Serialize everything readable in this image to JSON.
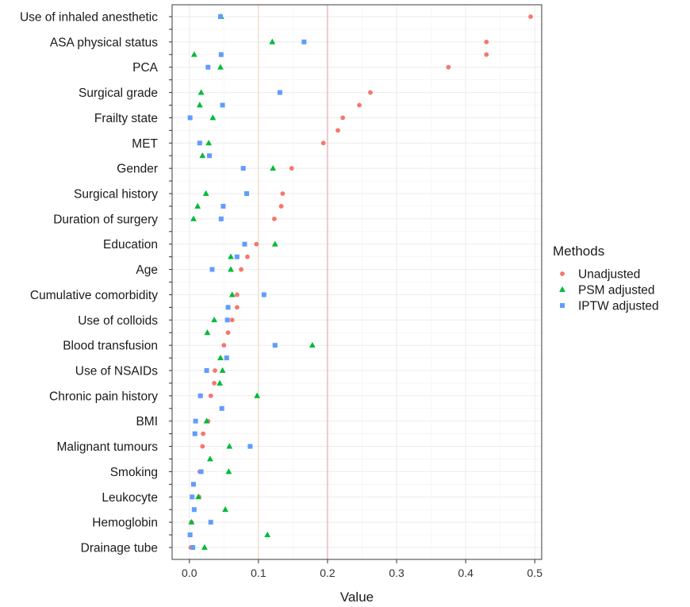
{
  "chart_data": {
    "type": "scatter",
    "xlabel": "Value",
    "ylabel": "",
    "xlim": [
      -0.025,
      0.51
    ],
    "xticks": [
      0.0,
      0.1,
      0.2,
      0.3,
      0.4,
      0.5
    ],
    "xtick_labels": [
      "0.0",
      "0.1",
      "0.2",
      "0.3",
      "0.4",
      "0.5"
    ],
    "reference_lines": [
      {
        "x": 0.1,
        "color": "#f2d9c0"
      },
      {
        "x": 0.2,
        "color": "#e7a7ac"
      }
    ],
    "grid": true,
    "legend": {
      "title": "Methods",
      "position": "right"
    },
    "categories": [
      "Use of inhaled anesthetic",
      "ASA physical status",
      "PCA",
      "Surgical grade",
      "Frailty state",
      "MET",
      "Gender",
      "Surgical history",
      "Duration of surgery",
      "Education",
      "Age",
      "Cumulative comorbidity",
      "Use of colloids",
      "Blood transfusion",
      "Use of NSAIDs",
      "Chronic pain history",
      "BMI",
      "Malignant tumours",
      "Smoking",
      "Leukocyte",
      "Hemoglobin",
      "Drainage tube"
    ],
    "series": [
      {
        "name": "Unadjusted",
        "color": "#f8766d",
        "marker": "circle",
        "values": [
          0.494,
          0.43,
          0.375,
          0.262,
          0.222,
          0.194,
          0.148,
          0.135,
          0.123,
          0.097,
          0.075,
          0.069,
          0.062,
          0.05,
          0.037,
          0.031,
          0.027,
          0.019,
          0.015,
          0.014,
          0.003,
          0.002
        ],
        "values_second": [
          null,
          0.43,
          null,
          0.246,
          0.215,
          null,
          null,
          0.133,
          null,
          0.084,
          null,
          0.069,
          0.056,
          null,
          0.036,
          null,
          0.02,
          null,
          null,
          null,
          null,
          null
        ]
      },
      {
        "name": "PSM adjusted",
        "color": "#00ba38",
        "marker": "triangle",
        "values": [
          0.046,
          0.12,
          0.045,
          0.017,
          0.034,
          0.028,
          0.121,
          0.024,
          0.006,
          0.124,
          0.06,
          0.062,
          0.036,
          0.178,
          0.048,
          0.098,
          0.025,
          0.058,
          0.057,
          0.013,
          0.003,
          0.022
        ],
        "values_second": [
          null,
          0.007,
          null,
          0.015,
          null,
          0.019,
          null,
          0.012,
          null,
          0.06,
          null,
          null,
          0.026,
          0.045,
          0.044,
          null,
          null,
          0.03,
          null,
          0.052,
          0.113,
          null
        ]
      },
      {
        "name": "IPTW adjusted",
        "color": "#619cff",
        "marker": "square",
        "values": [
          0.045,
          0.166,
          0.027,
          0.131,
          0.001,
          0.015,
          0.078,
          0.083,
          0.046,
          0.08,
          0.033,
          0.108,
          0.055,
          0.124,
          0.025,
          0.016,
          0.009,
          0.088,
          0.017,
          0.004,
          0.031,
          0.005
        ],
        "values_second": [
          null,
          0.046,
          null,
          0.048,
          null,
          0.029,
          null,
          0.049,
          null,
          0.069,
          null,
          0.056,
          null,
          0.054,
          null,
          0.047,
          0.008,
          null,
          0.006,
          0.007,
          0.001,
          null
        ]
      }
    ]
  }
}
